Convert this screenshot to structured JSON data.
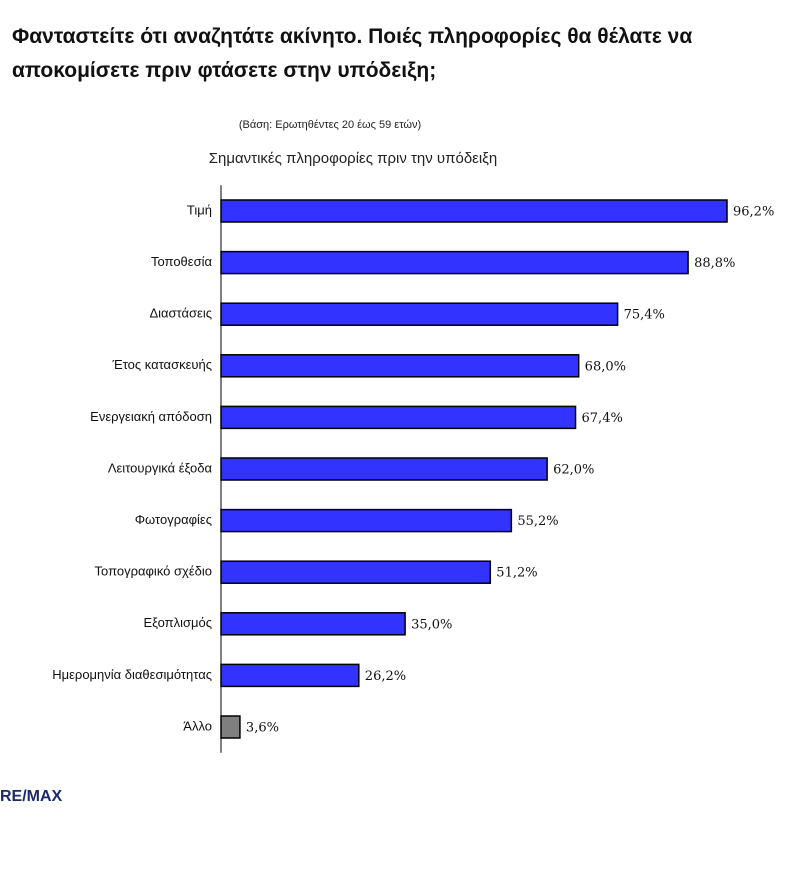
{
  "chart_data": {
    "type": "bar",
    "orientation": "horizontal",
    "title": "Φανταστείτε ότι αναζητάτε ακίνητο. Ποιές πληροφορίες θα θέλατε να αποκομίσετε πριν φτάσετε στην υπόδειξη;",
    "note": "(Βάση: Ερωτηθέντες 20 έως 59 ετών)",
    "subtitle": "Σημαντικές πληροφορίες πριν την υπόδειξη",
    "categories": [
      "Τιμή",
      "Τοποθεσία",
      "Διαστάσεις",
      "Έτος κατασκευής",
      "Ενεργειακή απόδοση",
      "Λειτουργικά έξοδα",
      "Φωτογραφίες",
      "Τοπογραφικό σχέδιο",
      "Εξοπλισμός",
      "Ημερομηνία διαθεσιμότητας",
      "Άλλο"
    ],
    "values": [
      96.2,
      88.8,
      75.4,
      68.0,
      67.4,
      62.0,
      55.2,
      51.2,
      35.0,
      26.2,
      3.6
    ],
    "value_labels": [
      "96,2%",
      "88,8%",
      "75,4%",
      "68,0%",
      "67,4%",
      "62,0%",
      "55,2%",
      "51,2%",
      "35,0%",
      "26,2%",
      "3,6%"
    ],
    "colors": [
      "#3333ff",
      "#3333ff",
      "#3333ff",
      "#3333ff",
      "#3333ff",
      "#3333ff",
      "#3333ff",
      "#3333ff",
      "#3333ff",
      "#3333ff",
      "#7f7f7f"
    ],
    "xlim": [
      0,
      100
    ],
    "source": "RE/MAX"
  }
}
